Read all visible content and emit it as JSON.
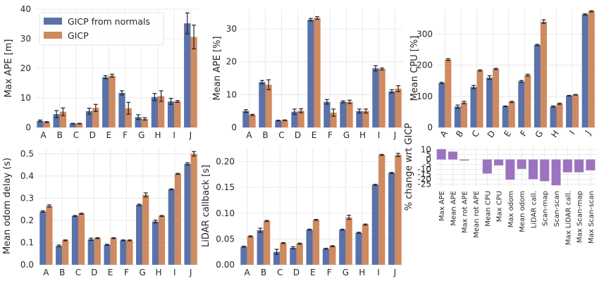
{
  "colors": {
    "gicp_from_normals": "#5a72a8",
    "gicp": "#cf8a5f",
    "change": "#9b73c0",
    "grid": "#e4e4e4",
    "background": "#ffffff"
  },
  "legend": {
    "items": [
      "GICP from normals",
      "GICP"
    ],
    "placement": "top-left of first panel"
  },
  "chart_data": [
    {
      "type": "bar",
      "ylabel": "Max APE [m]",
      "categories": [
        "A",
        "B",
        "C",
        "D",
        "E",
        "F",
        "G",
        "H",
        "I",
        "J"
      ],
      "ylim": [
        0,
        40
      ],
      "yticks": [
        0,
        10,
        20,
        30,
        40
      ],
      "grid": true,
      "series": [
        {
          "name": "GICP from normals",
          "values": [
            2.2,
            4.5,
            1.3,
            5.5,
            17.0,
            11.7,
            3.5,
            10.3,
            8.8,
            35.2
          ],
          "errors": [
            0.3,
            1.2,
            0.1,
            1.0,
            0.5,
            0.7,
            0.8,
            1.2,
            1.0,
            3.5
          ]
        },
        {
          "name": "GICP",
          "values": [
            1.8,
            5.3,
            1.3,
            6.6,
            17.5,
            6.5,
            2.9,
            10.6,
            8.8,
            30.6
          ],
          "errors": [
            0.2,
            1.3,
            0.1,
            1.2,
            0.5,
            2.0,
            0.4,
            1.8,
            0.3,
            4.0
          ]
        }
      ]
    },
    {
      "type": "bar",
      "ylabel": "Mean APE [%]",
      "categories": [
        "A",
        "B",
        "C",
        "D",
        "E",
        "F",
        "G",
        "H",
        "I",
        "J"
      ],
      "ylim": [
        0,
        36
      ],
      "yticks": [
        0,
        10,
        20,
        30
      ],
      "grid": true,
      "series": [
        {
          "name": "GICP from normals",
          "values": [
            5.0,
            13.8,
            2.1,
            4.8,
            32.8,
            7.8,
            7.8,
            5.0,
            18.0,
            11.0
          ],
          "errors": [
            0.4,
            0.5,
            0.1,
            0.8,
            0.4,
            0.7,
            0.3,
            0.6,
            0.8,
            0.5
          ]
        },
        {
          "name": "GICP",
          "values": [
            3.8,
            13.0,
            2.2,
            5.1,
            33.3,
            4.5,
            7.8,
            5.0,
            17.8,
            11.8
          ],
          "errors": [
            0.2,
            1.5,
            0.1,
            0.6,
            0.4,
            1.1,
            0.5,
            0.6,
            0.3,
            0.9
          ]
        }
      ]
    },
    {
      "type": "bar",
      "ylabel": "Mean CPU [%]",
      "categories": [
        "A",
        "B",
        "C",
        "D",
        "E",
        "F",
        "G",
        "H",
        "I",
        "J"
      ],
      "ylim": [
        0,
        380
      ],
      "yticks": [
        0,
        100,
        200,
        300
      ],
      "grid": true,
      "series": [
        {
          "name": "GICP from normals",
          "values": [
            143,
            67,
            130,
            160,
            68,
            148,
            265,
            67,
            102,
            363
          ],
          "errors": [
            2,
            5,
            5,
            6,
            1,
            3,
            2,
            2,
            1,
            2
          ]
        },
        {
          "name": "GICP",
          "values": [
            218,
            80,
            183,
            188,
            82,
            168,
            340,
            76,
            105,
            373
          ],
          "errors": [
            3,
            4,
            2,
            2,
            2,
            3,
            6,
            2,
            1,
            2
          ]
        }
      ]
    },
    {
      "type": "bar",
      "ylabel": "Mean odom delay (s)",
      "categories": [
        "A",
        "B",
        "C",
        "D",
        "E",
        "F",
        "G",
        "H",
        "I",
        "J"
      ],
      "ylim": [
        0,
        0.53
      ],
      "yticks": [
        0.0,
        0.1,
        0.2,
        0.3,
        0.4,
        0.5
      ],
      "grid": true,
      "series": [
        {
          "name": "GICP from normals",
          "values": [
            0.24,
            0.085,
            0.22,
            0.115,
            0.09,
            0.11,
            0.27,
            0.195,
            0.34,
            0.455
          ],
          "errors": [
            0.003,
            0.004,
            0.002,
            0.005,
            0.002,
            0.002,
            0.003,
            0.006,
            0.002,
            0.005
          ]
        },
        {
          "name": "GICP",
          "values": [
            0.265,
            0.11,
            0.23,
            0.12,
            0.12,
            0.11,
            0.315,
            0.22,
            0.41,
            0.5
          ],
          "errors": [
            0.005,
            0.002,
            0.002,
            0.002,
            0.002,
            0.002,
            0.009,
            0.002,
            0.002,
            0.01
          ]
        }
      ]
    },
    {
      "type": "bar",
      "ylabel": "LiDAR callback [s]",
      "categories": [
        "A",
        "B",
        "C",
        "D",
        "E",
        "F",
        "G",
        "H",
        "I",
        "J"
      ],
      "ylim": [
        0,
        0.228
      ],
      "yticks": [
        0.0,
        0.05,
        0.1,
        0.15,
        0.2
      ],
      "grid": true,
      "series": [
        {
          "name": "GICP from normals",
          "values": [
            0.035,
            0.067,
            0.025,
            0.033,
            0.068,
            0.031,
            0.068,
            0.062,
            0.155,
            0.178
          ],
          "errors": [
            0.001,
            0.004,
            0.005,
            0.002,
            0.001,
            0.001,
            0.001,
            0.001,
            0.001,
            0.001
          ]
        },
        {
          "name": "GICP",
          "values": [
            0.055,
            0.085,
            0.042,
            0.041,
            0.087,
            0.036,
            0.092,
            0.078,
            0.213,
            0.213
          ],
          "errors": [
            0.001,
            0.001,
            0.001,
            0.001,
            0.001,
            0.001,
            0.004,
            0.001,
            0.001,
            0.003
          ]
        }
      ]
    },
    {
      "type": "bar",
      "ylabel": "% change wrt GICP",
      "categories": [
        "Max APE",
        "Mean APE",
        "Max rot APE",
        "Mean rot APE",
        "Mean CPU",
        "Max CPU",
        "Max odom",
        "Mean odom",
        "LiDAR call.",
        "Scan-map",
        "Scan-scan",
        "Max LiDAR call.",
        "Max Scan-map",
        "Max Scan-scan"
      ],
      "ylim": [
        -27.5,
        12.5
      ],
      "yticks": [
        10,
        5,
        0,
        -5,
        -10,
        -15,
        -20,
        -25
      ],
      "grid": true,
      "series": [
        {
          "name": "",
          "values": [
            10.5,
            8.0,
            -1.0,
            0,
            -14.2,
            -6.0,
            -20.5,
            -9.5,
            -20.0,
            -22.0,
            -26.2,
            -13.0,
            -13.0,
            -11.0
          ]
        }
      ]
    }
  ]
}
